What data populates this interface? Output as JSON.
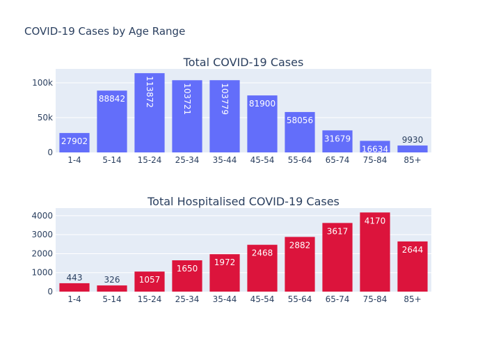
{
  "title": "COVID-19 Cases by Age Range",
  "chart_data": [
    {
      "type": "bar",
      "title": "Total COVID-19 Cases",
      "categories": [
        "1-4",
        "5-14",
        "15-24",
        "25-34",
        "35-44",
        "45-54",
        "55-64",
        "65-74",
        "75-84",
        "85+"
      ],
      "values": [
        27902,
        88842,
        113872,
        103721,
        103779,
        81900,
        58056,
        31679,
        16634,
        9930
      ],
      "ylim": [
        0,
        120000
      ],
      "yticks": [
        0,
        50000,
        100000
      ],
      "ytick_labels": [
        "0",
        "50k",
        "100k"
      ],
      "color": "#636efa",
      "grid": true
    },
    {
      "type": "bar",
      "title": "Total Hospitalised COVID-19 Cases",
      "categories": [
        "1-4",
        "5-14",
        "15-24",
        "25-34",
        "35-44",
        "45-54",
        "55-64",
        "65-74",
        "75-84",
        "85+"
      ],
      "values": [
        443,
        326,
        1057,
        1650,
        1972,
        2468,
        2882,
        3617,
        4170,
        2644
      ],
      "ylim": [
        0,
        4400
      ],
      "yticks": [
        0,
        1000,
        2000,
        3000,
        4000
      ],
      "ytick_labels": [
        "0",
        "1000",
        "2000",
        "3000",
        "4000"
      ],
      "color": "#dc143c",
      "grid": true
    }
  ]
}
